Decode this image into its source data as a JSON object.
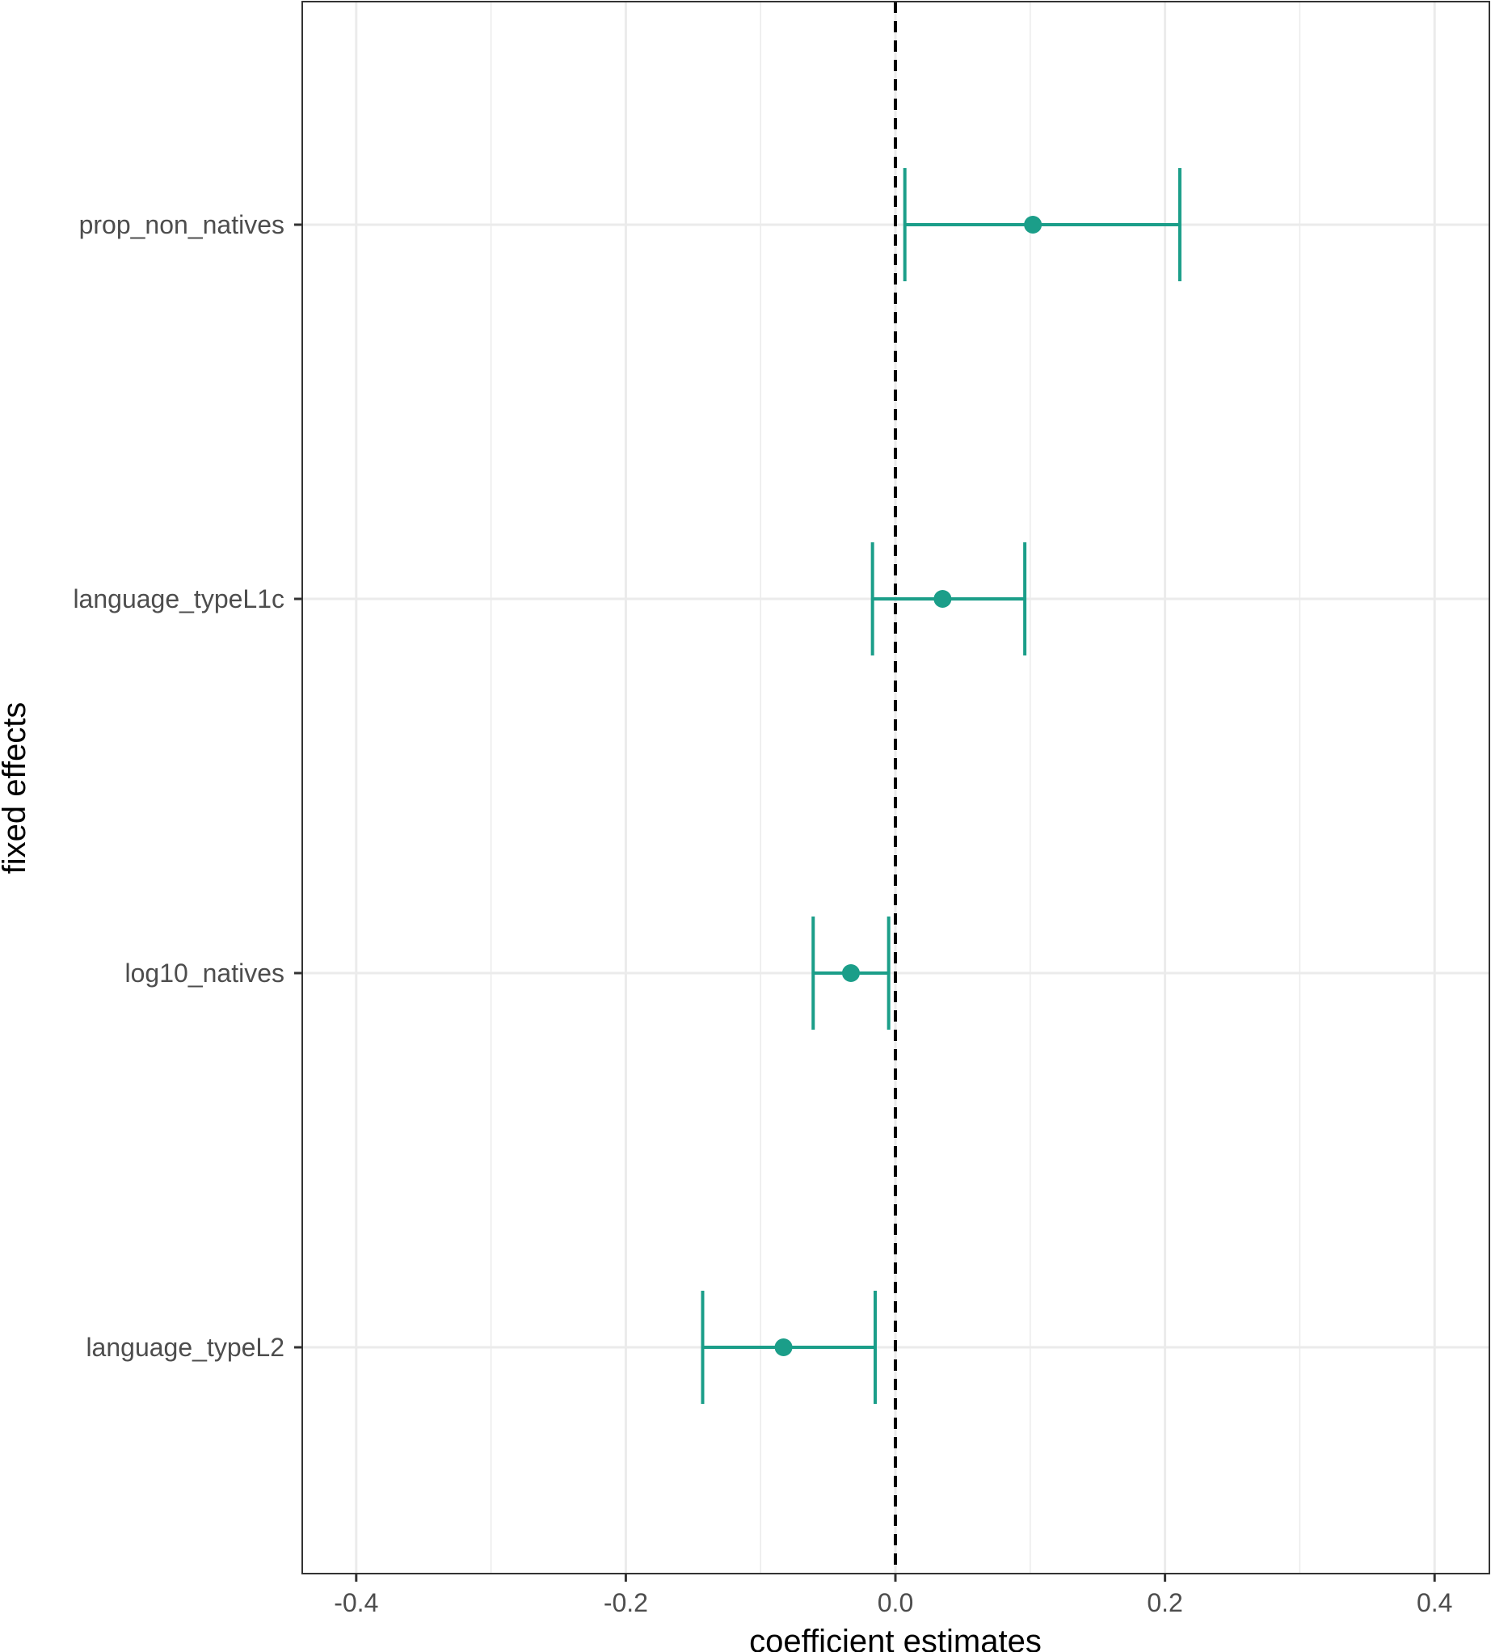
{
  "chart_data": {
    "type": "scatter",
    "xlabel": "coefficient estimates",
    "ylabel": "fixed effects",
    "xlim": [
      -0.44,
      0.44
    ],
    "xticks": [
      -0.4,
      -0.2,
      0.0,
      0.2,
      0.4
    ],
    "xtick_labels": [
      "-0.4",
      "-0.2",
      "0.0",
      "0.2",
      "0.4"
    ],
    "categories": [
      "prop_non_natives",
      "language_typeL1c",
      "log10_natives",
      "language_typeL2"
    ],
    "estimates": [
      0.102,
      0.035,
      -0.033,
      -0.083
    ],
    "ci_lower": [
      0.007,
      -0.017,
      -0.061,
      -0.143
    ],
    "ci_upper": [
      0.211,
      0.096,
      -0.005,
      -0.015
    ],
    "reference_line": 0.0,
    "grid": true,
    "colors": {
      "series": "#1b9e89",
      "reference_line": "#000000",
      "grid": "#ebebeb",
      "panel_border": "#333333"
    }
  }
}
